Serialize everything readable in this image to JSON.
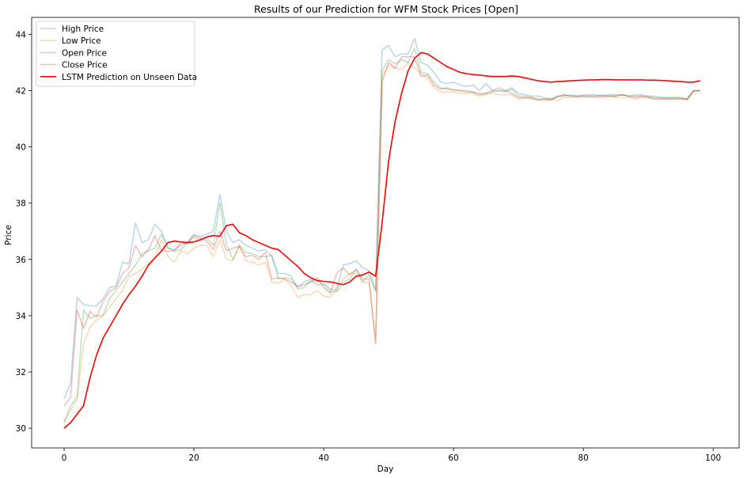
{
  "chart_data": {
    "type": "line",
    "title": "Results of our Prediction for WFM Stock Prices [Open]",
    "xlabel": "Day",
    "ylabel": "Price",
    "xlim": [
      -5,
      104
    ],
    "ylim": [
      29.3,
      44.6
    ],
    "xticks": [
      0,
      20,
      40,
      60,
      80,
      100
    ],
    "yticks": [
      30,
      32,
      34,
      36,
      38,
      40,
      42,
      44
    ],
    "grid": false,
    "legend_position": "upper left",
    "series": [
      {
        "name": "High Price",
        "color": "#1f77b4",
        "alpha": 0.3,
        "x": [
          0,
          1,
          2,
          3,
          4,
          5,
          6,
          7,
          8,
          9,
          10,
          11,
          12,
          13,
          14,
          15,
          16,
          17,
          18,
          19,
          20,
          21,
          22,
          23,
          24,
          25,
          26,
          27,
          28,
          29,
          30,
          31,
          32,
          33,
          34,
          35,
          36,
          37,
          38,
          39,
          40,
          41,
          42,
          43,
          44,
          45,
          46,
          47,
          48,
          49,
          50,
          51,
          52,
          53,
          54,
          55,
          56,
          57,
          58,
          59,
          60,
          61,
          62,
          63,
          64,
          65,
          66,
          67,
          68,
          69,
          70,
          71,
          72,
          73,
          74,
          75,
          76,
          77,
          78,
          79,
          80,
          81,
          82,
          83,
          84,
          85,
          86,
          87,
          88,
          89,
          90,
          91,
          92,
          93,
          94,
          95,
          96,
          97,
          98
        ],
        "y": [
          31.05,
          31.6,
          34.65,
          34.4,
          34.35,
          34.35,
          34.6,
          35.0,
          35.05,
          35.9,
          35.85,
          37.3,
          36.6,
          36.7,
          37.25,
          37.0,
          36.4,
          36.35,
          36.5,
          36.6,
          36.9,
          36.8,
          36.9,
          37.0,
          38.3,
          37.0,
          36.6,
          36.7,
          36.5,
          36.4,
          36.3,
          36.35,
          36.1,
          35.5,
          35.5,
          35.4,
          35.0,
          35.2,
          35.3,
          35.2,
          35.15,
          34.95,
          34.9,
          35.8,
          35.85,
          35.95,
          35.7,
          35.6,
          34.9,
          43.45,
          43.6,
          43.2,
          43.3,
          43.3,
          43.85,
          43.0,
          42.9,
          42.65,
          42.3,
          42.25,
          42.3,
          42.2,
          42.15,
          42.2,
          42.0,
          42.25,
          42.0,
          42.0,
          42.0,
          42.1,
          41.9,
          41.85,
          41.8,
          41.8,
          41.75,
          41.7,
          41.8,
          41.8,
          41.85,
          41.8,
          41.85,
          41.85,
          41.85,
          41.8,
          41.85,
          41.85,
          41.85,
          41.8,
          41.85,
          41.85,
          41.8,
          41.8,
          41.75,
          41.75,
          41.75,
          41.75,
          41.7,
          42.0,
          42.0
        ]
      },
      {
        "name": "Low Price",
        "color": "#ff7f0e",
        "alpha": 0.3,
        "x": [
          0,
          1,
          2,
          3,
          4,
          5,
          6,
          7,
          8,
          9,
          10,
          11,
          12,
          13,
          14,
          15,
          16,
          17,
          18,
          19,
          20,
          21,
          22,
          23,
          24,
          25,
          26,
          27,
          28,
          29,
          30,
          31,
          32,
          33,
          34,
          35,
          36,
          37,
          38,
          39,
          40,
          41,
          42,
          43,
          44,
          45,
          46,
          47,
          48,
          49,
          50,
          51,
          52,
          53,
          54,
          55,
          56,
          57,
          58,
          59,
          60,
          61,
          62,
          63,
          64,
          65,
          66,
          67,
          68,
          69,
          70,
          71,
          72,
          73,
          74,
          75,
          76,
          77,
          78,
          79,
          80,
          81,
          82,
          83,
          84,
          85,
          86,
          87,
          88,
          89,
          90,
          91,
          92,
          93,
          94,
          95,
          96,
          97,
          98
        ],
        "y": [
          30.25,
          30.65,
          31.0,
          33.0,
          33.6,
          33.85,
          34.0,
          34.3,
          34.6,
          34.9,
          35.4,
          35.5,
          35.65,
          35.85,
          36.1,
          36.7,
          36.1,
          35.9,
          36.3,
          36.2,
          36.4,
          36.5,
          36.5,
          36.1,
          36.7,
          36.0,
          35.95,
          36.5,
          35.95,
          35.9,
          35.8,
          35.9,
          35.2,
          35.15,
          35.3,
          35.05,
          34.65,
          34.75,
          34.75,
          34.9,
          34.7,
          34.65,
          35.0,
          35.3,
          35.5,
          35.5,
          35.2,
          35.15,
          33.05,
          42.5,
          42.9,
          42.8,
          42.75,
          43.0,
          42.8,
          42.6,
          42.45,
          42.1,
          41.95,
          41.95,
          41.95,
          41.9,
          41.9,
          41.9,
          41.8,
          41.85,
          41.9,
          41.85,
          41.85,
          41.85,
          41.7,
          41.75,
          41.7,
          41.7,
          41.65,
          41.7,
          41.65,
          41.75,
          41.75,
          41.75,
          41.75,
          41.75,
          41.75,
          41.75,
          41.8,
          41.75,
          41.75,
          41.75,
          41.7,
          41.75,
          41.75,
          41.7,
          41.7,
          41.7,
          41.7,
          41.7,
          41.65,
          41.95,
          42.0
        ]
      },
      {
        "name": "Open Price",
        "color": "#2ca02c",
        "alpha": 0.3,
        "x": [
          0,
          1,
          2,
          3,
          4,
          5,
          6,
          7,
          8,
          9,
          10,
          11,
          12,
          13,
          14,
          15,
          16,
          17,
          18,
          19,
          20,
          21,
          22,
          23,
          24,
          25,
          26,
          27,
          28,
          29,
          30,
          31,
          32,
          33,
          34,
          35,
          36,
          37,
          38,
          39,
          40,
          41,
          42,
          43,
          44,
          45,
          46,
          47,
          48,
          49,
          50,
          51,
          52,
          53,
          54,
          55,
          56,
          57,
          58,
          59,
          60,
          61,
          62,
          63,
          64,
          65,
          66,
          67,
          68,
          69,
          70,
          71,
          72,
          73,
          74,
          75,
          76,
          77,
          78,
          79,
          80,
          81,
          82,
          83,
          84,
          85,
          86,
          87,
          88,
          89,
          90,
          91,
          92,
          93,
          94,
          95,
          96,
          97,
          98
        ],
        "y": [
          30.2,
          30.8,
          31.1,
          34.2,
          33.9,
          34.0,
          34.0,
          34.6,
          34.9,
          35.2,
          35.5,
          35.8,
          36.2,
          36.3,
          36.4,
          36.9,
          36.4,
          36.3,
          36.35,
          36.6,
          36.8,
          36.65,
          36.75,
          36.5,
          38.0,
          36.55,
          36.0,
          36.5,
          36.25,
          36.2,
          36.1,
          36.1,
          36.15,
          35.3,
          35.35,
          35.3,
          34.95,
          35.0,
          35.25,
          35.1,
          35.1,
          34.85,
          34.85,
          35.2,
          35.3,
          35.65,
          35.2,
          35.45,
          34.85,
          42.7,
          43.1,
          42.95,
          43.1,
          43.0,
          43.5,
          42.65,
          42.6,
          42.3,
          42.1,
          42.05,
          42.05,
          42.0,
          41.95,
          41.95,
          41.9,
          41.9,
          41.95,
          42.0,
          41.95,
          42.05,
          41.8,
          41.8,
          41.75,
          41.7,
          41.7,
          41.7,
          41.75,
          41.85,
          41.8,
          41.8,
          41.8,
          41.8,
          41.8,
          41.85,
          41.8,
          41.8,
          41.85,
          41.8,
          41.8,
          41.8,
          41.8,
          41.75,
          41.75,
          41.75,
          41.75,
          41.75,
          41.7,
          42.0,
          42.0
        ]
      },
      {
        "name": "Close Price",
        "color": "#d62728",
        "alpha": 0.3,
        "x": [
          0,
          1,
          2,
          3,
          4,
          5,
          6,
          7,
          8,
          9,
          10,
          11,
          12,
          13,
          14,
          15,
          16,
          17,
          18,
          19,
          20,
          21,
          22,
          23,
          24,
          25,
          26,
          27,
          28,
          29,
          30,
          31,
          32,
          33,
          34,
          35,
          36,
          37,
          38,
          39,
          40,
          41,
          42,
          43,
          44,
          45,
          46,
          47,
          48,
          49,
          50,
          51,
          52,
          53,
          54,
          55,
          56,
          57,
          58,
          59,
          60,
          61,
          62,
          63,
          64,
          65,
          66,
          67,
          68,
          69,
          70,
          71,
          72,
          73,
          74,
          75,
          76,
          77,
          78,
          79,
          80,
          81,
          82,
          83,
          84,
          85,
          86,
          87,
          88,
          89,
          90,
          91,
          92,
          93,
          94,
          95,
          96,
          97,
          98
        ],
        "y": [
          30.8,
          31.1,
          34.2,
          33.55,
          34.15,
          33.95,
          34.5,
          34.85,
          35.0,
          35.5,
          35.7,
          36.5,
          36.1,
          36.35,
          36.85,
          36.3,
          36.3,
          36.3,
          36.6,
          36.55,
          36.85,
          36.75,
          36.65,
          36.35,
          37.0,
          36.3,
          36.4,
          36.45,
          36.1,
          36.15,
          36.0,
          36.25,
          35.3,
          35.35,
          35.3,
          35.2,
          35.05,
          35.1,
          35.2,
          35.35,
          35.0,
          34.8,
          35.5,
          35.7,
          35.45,
          35.65,
          35.3,
          35.3,
          33.0,
          42.3,
          43.0,
          42.8,
          43.2,
          43.2,
          43.2,
          42.5,
          42.55,
          42.2,
          42.05,
          42.1,
          42.0,
          42.0,
          42.0,
          41.95,
          41.85,
          41.9,
          42.0,
          42.1,
          42.0,
          41.9,
          41.75,
          41.75,
          41.75,
          41.65,
          41.7,
          41.65,
          41.8,
          41.85,
          41.8,
          41.8,
          41.8,
          41.8,
          41.8,
          41.8,
          41.8,
          41.8,
          41.85,
          41.8,
          41.75,
          41.8,
          41.75,
          41.7,
          41.7,
          41.7,
          41.7,
          41.7,
          41.7,
          42.0,
          42.0
        ]
      },
      {
        "name": "LSTM Prediction on Unseen Data",
        "color": "#ff0000",
        "alpha": 1.0,
        "x": [
          0,
          1,
          2,
          3,
          4,
          5,
          6,
          7,
          8,
          9,
          10,
          11,
          12,
          13,
          14,
          15,
          16,
          17,
          18,
          19,
          20,
          21,
          22,
          23,
          24,
          25,
          26,
          27,
          28,
          29,
          30,
          31,
          32,
          33,
          34,
          35,
          36,
          37,
          38,
          39,
          40,
          41,
          42,
          43,
          44,
          45,
          46,
          47,
          48,
          49,
          50,
          51,
          52,
          53,
          54,
          55,
          56,
          57,
          58,
          59,
          60,
          61,
          62,
          63,
          64,
          65,
          66,
          67,
          68,
          69,
          70,
          71,
          72,
          73,
          74,
          75,
          76,
          77,
          78,
          79,
          80,
          81,
          82,
          83,
          84,
          85,
          86,
          87,
          88,
          89,
          90,
          91,
          92,
          93,
          94,
          95,
          96,
          97,
          98
        ],
        "y": [
          30.0,
          30.2,
          30.5,
          30.8,
          31.8,
          32.6,
          33.2,
          33.6,
          34.0,
          34.4,
          34.75,
          35.05,
          35.4,
          35.8,
          36.05,
          36.3,
          36.6,
          36.65,
          36.62,
          36.6,
          36.62,
          36.7,
          36.8,
          36.85,
          36.82,
          37.2,
          37.25,
          36.95,
          36.85,
          36.7,
          36.6,
          36.5,
          36.4,
          36.35,
          36.15,
          35.95,
          35.75,
          35.5,
          35.35,
          35.25,
          35.22,
          35.2,
          35.15,
          35.1,
          35.2,
          35.4,
          35.45,
          35.55,
          35.4,
          37.3,
          39.5,
          40.9,
          41.9,
          42.7,
          43.15,
          43.35,
          43.3,
          43.15,
          43.0,
          42.85,
          42.75,
          42.65,
          42.6,
          42.57,
          42.55,
          42.52,
          42.5,
          42.5,
          42.5,
          42.52,
          42.5,
          42.45,
          42.4,
          42.35,
          42.32,
          42.3,
          42.32,
          42.33,
          42.35,
          42.36,
          42.37,
          42.38,
          42.38,
          42.39,
          42.39,
          42.38,
          42.38,
          42.38,
          42.38,
          42.38,
          42.37,
          42.37,
          42.36,
          42.35,
          42.33,
          42.32,
          42.3,
          42.3,
          42.35
        ]
      }
    ]
  }
}
